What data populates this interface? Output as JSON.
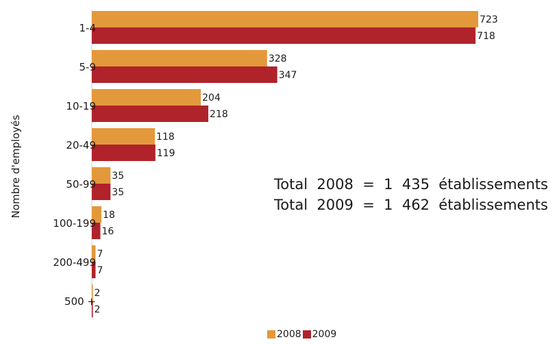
{
  "chart_data": {
    "type": "bar",
    "orientation": "horizontal",
    "categories": [
      "1-4",
      "5-9",
      "10-19",
      "20-49",
      "50-99",
      "100-199",
      "200-499",
      "500 +"
    ],
    "series": [
      {
        "name": "2008",
        "color": "#E3993B",
        "values": [
          723,
          328,
          204,
          118,
          35,
          18,
          7,
          2
        ]
      },
      {
        "name": "2009",
        "color": "#B0232A",
        "values": [
          718,
          347,
          218,
          119,
          35,
          16,
          7,
          2
        ]
      }
    ],
    "ylabel": "Nombre d'employés",
    "xlabel": "",
    "xlim": [
      0,
      723
    ],
    "grid": false,
    "legend": "bottom",
    "annotations": [
      "Total  2008  =  1  435  établissements",
      "Total  2009  =  1  462  établissements"
    ]
  }
}
